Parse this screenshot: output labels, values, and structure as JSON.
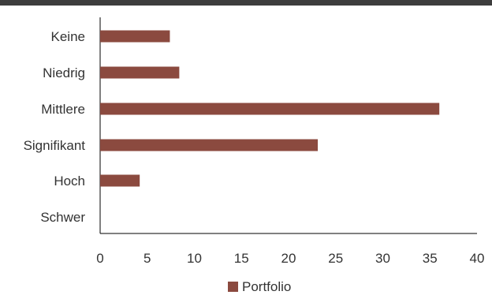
{
  "colors": {
    "top_rule": "#3d3d3d",
    "bar": "#8b4a3f",
    "axis": "#000000",
    "text": "#333333"
  },
  "chart_data": {
    "type": "bar",
    "orientation": "horizontal",
    "categories": [
      "Keine",
      "Niedrig",
      "Mittlere",
      "Signifikant",
      "Hoch",
      "Schwer"
    ],
    "series": [
      {
        "name": "Portfolio",
        "values": [
          7.4,
          8.4,
          36.0,
          23.1,
          4.2,
          0
        ]
      }
    ],
    "xlim": [
      0,
      40
    ],
    "xticks": [
      "0",
      "5",
      "10",
      "15",
      "20",
      "25",
      "30",
      "35",
      "40"
    ],
    "grid": false,
    "legend_position": "bottom-center"
  }
}
